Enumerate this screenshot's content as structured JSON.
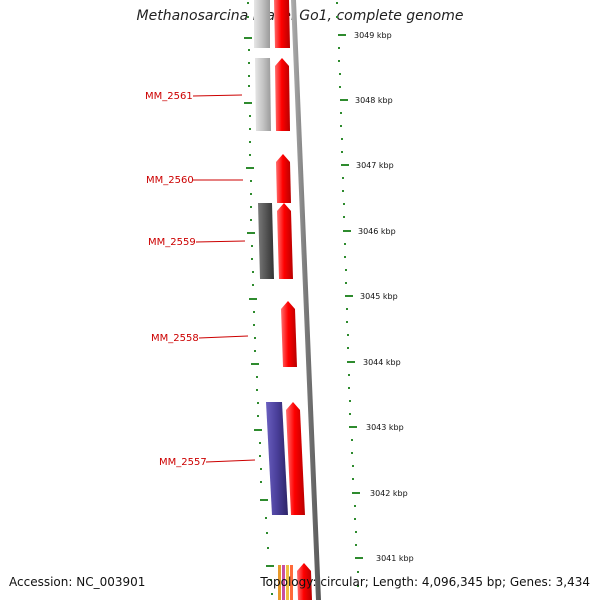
{
  "title": "Methanosarcina mazei Go1, complete genome",
  "accession": "Accession: NC_003901",
  "topology": "Topology: circular; Length: 4,096,345 bp; Genes: 3,434",
  "colors": {
    "forward_gene": "#ff0000",
    "reverse_light": "#c4c4c4",
    "reverse_dark": "#5a5a5a",
    "reverse_purple": "#4a3f9a",
    "backbone": "#8a8a8a",
    "tick": "#2e8b2e",
    "label": "#cc0000"
  },
  "scale_labels": [
    "3049 kbp",
    "3048 kbp",
    "3047 kbp",
    "3046 kbp",
    "3045 kbp",
    "3044 kbp",
    "3043 kbp",
    "3042 kbp",
    "3041 kbp"
  ],
  "gene_labels": [
    "MM_2561",
    "MM_2560",
    "MM_2559",
    "MM_2558",
    "MM_2557"
  ]
}
